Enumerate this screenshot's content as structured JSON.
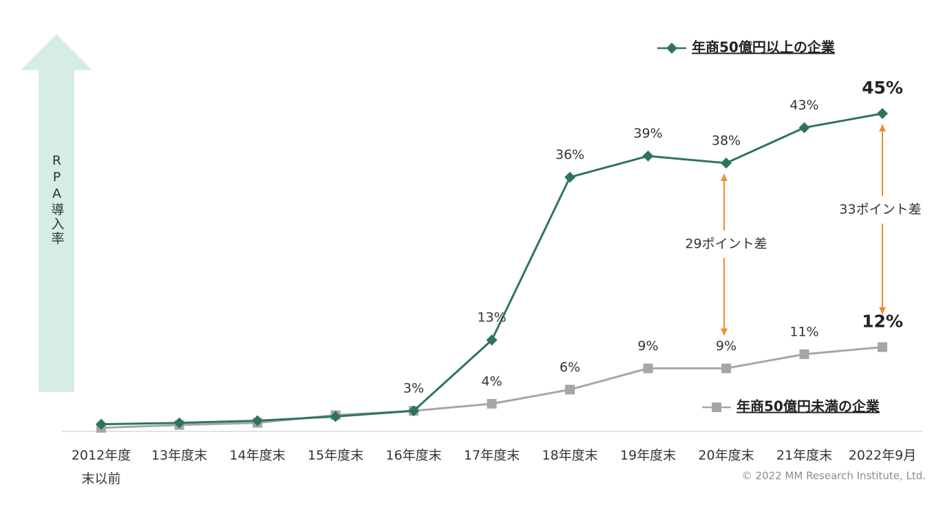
{
  "chart_data": {
    "type": "line",
    "y_axis_label": "RPA導入率",
    "categories": [
      "2012年度\n末以前",
      "13年度末",
      "14年度末",
      "15年度末",
      "16年度末",
      "17年度末",
      "18年度末",
      "19年度末",
      "20年度末",
      "21年度末",
      "2022年9月"
    ],
    "series": [
      {
        "name": "年商50億円以上の企業",
        "color": "#2e7458",
        "marker": "diamond",
        "values": [
          1.1,
          1.3,
          1.6,
          2.2,
          3,
          13,
          36,
          39,
          38,
          43,
          45
        ],
        "value_labels": [
          null,
          null,
          null,
          null,
          "3%",
          "13%",
          "36%",
          "39%",
          "38%",
          "43%",
          "45%"
        ]
      },
      {
        "name": "年商50億円未満の企業",
        "color": "#a6a6a6",
        "marker": "square",
        "values": [
          0.6,
          1.0,
          1.3,
          2.4,
          3,
          4,
          6,
          9,
          9,
          11,
          12
        ],
        "value_labels": [
          null,
          null,
          null,
          null,
          null,
          "4%",
          "6%",
          "9%",
          "9%",
          "11%",
          "12%"
        ]
      }
    ],
    "ylim": [
      0,
      45
    ],
    "annotations": [
      "29ポイント差",
      "33ポイント差"
    ],
    "source": "© 2022 MM Research Institute, Ltd."
  }
}
